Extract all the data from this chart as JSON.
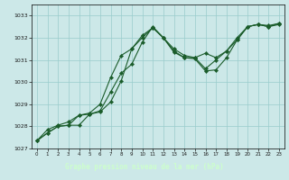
{
  "bg_color": "#cce8e8",
  "plot_bg_color": "#cce8e8",
  "label_bg_color": "#1a5c2a",
  "grid_color": "#99cccc",
  "line_color": "#1a5c2a",
  "marker_color": "#1a5c2a",
  "xlabel": "Graphe pression niveau de la mer (hPa)",
  "xlabel_color": "#ccffcc",
  "xlim": [
    -0.5,
    23.5
  ],
  "ylim": [
    1027,
    1033.5
  ],
  "yticks": [
    1027,
    1028,
    1029,
    1030,
    1031,
    1032,
    1033
  ],
  "xticks": [
    0,
    1,
    2,
    3,
    4,
    5,
    6,
    7,
    8,
    9,
    10,
    11,
    12,
    13,
    14,
    15,
    16,
    17,
    18,
    19,
    20,
    21,
    22,
    23
  ],
  "series": [
    [
      1027.35,
      1027.7,
      1028.0,
      1028.05,
      1028.05,
      1028.55,
      1028.65,
      1029.1,
      1030.05,
      1031.5,
      1032.0,
      1032.45,
      1032.0,
      1031.35,
      1031.1,
      1031.05,
      1030.5,
      1030.55,
      1031.1,
      1031.9,
      1032.5,
      1032.6,
      1032.5,
      1032.6
    ],
    [
      1027.35,
      1027.7,
      1028.0,
      1028.05,
      1028.5,
      1028.55,
      1028.7,
      1029.55,
      1030.4,
      1030.8,
      1031.8,
      1032.5,
      1032.0,
      1031.4,
      1031.1,
      1031.1,
      1030.6,
      1031.0,
      1031.4,
      1031.9,
      1032.5,
      1032.6,
      1032.55,
      1032.65
    ],
    [
      1027.35,
      1027.85,
      1028.05,
      1028.2,
      1028.5,
      1028.6,
      1029.0,
      1030.2,
      1031.2,
      1031.5,
      1032.1,
      1032.45,
      1032.0,
      1031.5,
      1031.2,
      1031.1,
      1031.3,
      1031.1,
      1031.4,
      1032.0,
      1032.5,
      1032.6,
      1032.5,
      1032.65
    ]
  ]
}
